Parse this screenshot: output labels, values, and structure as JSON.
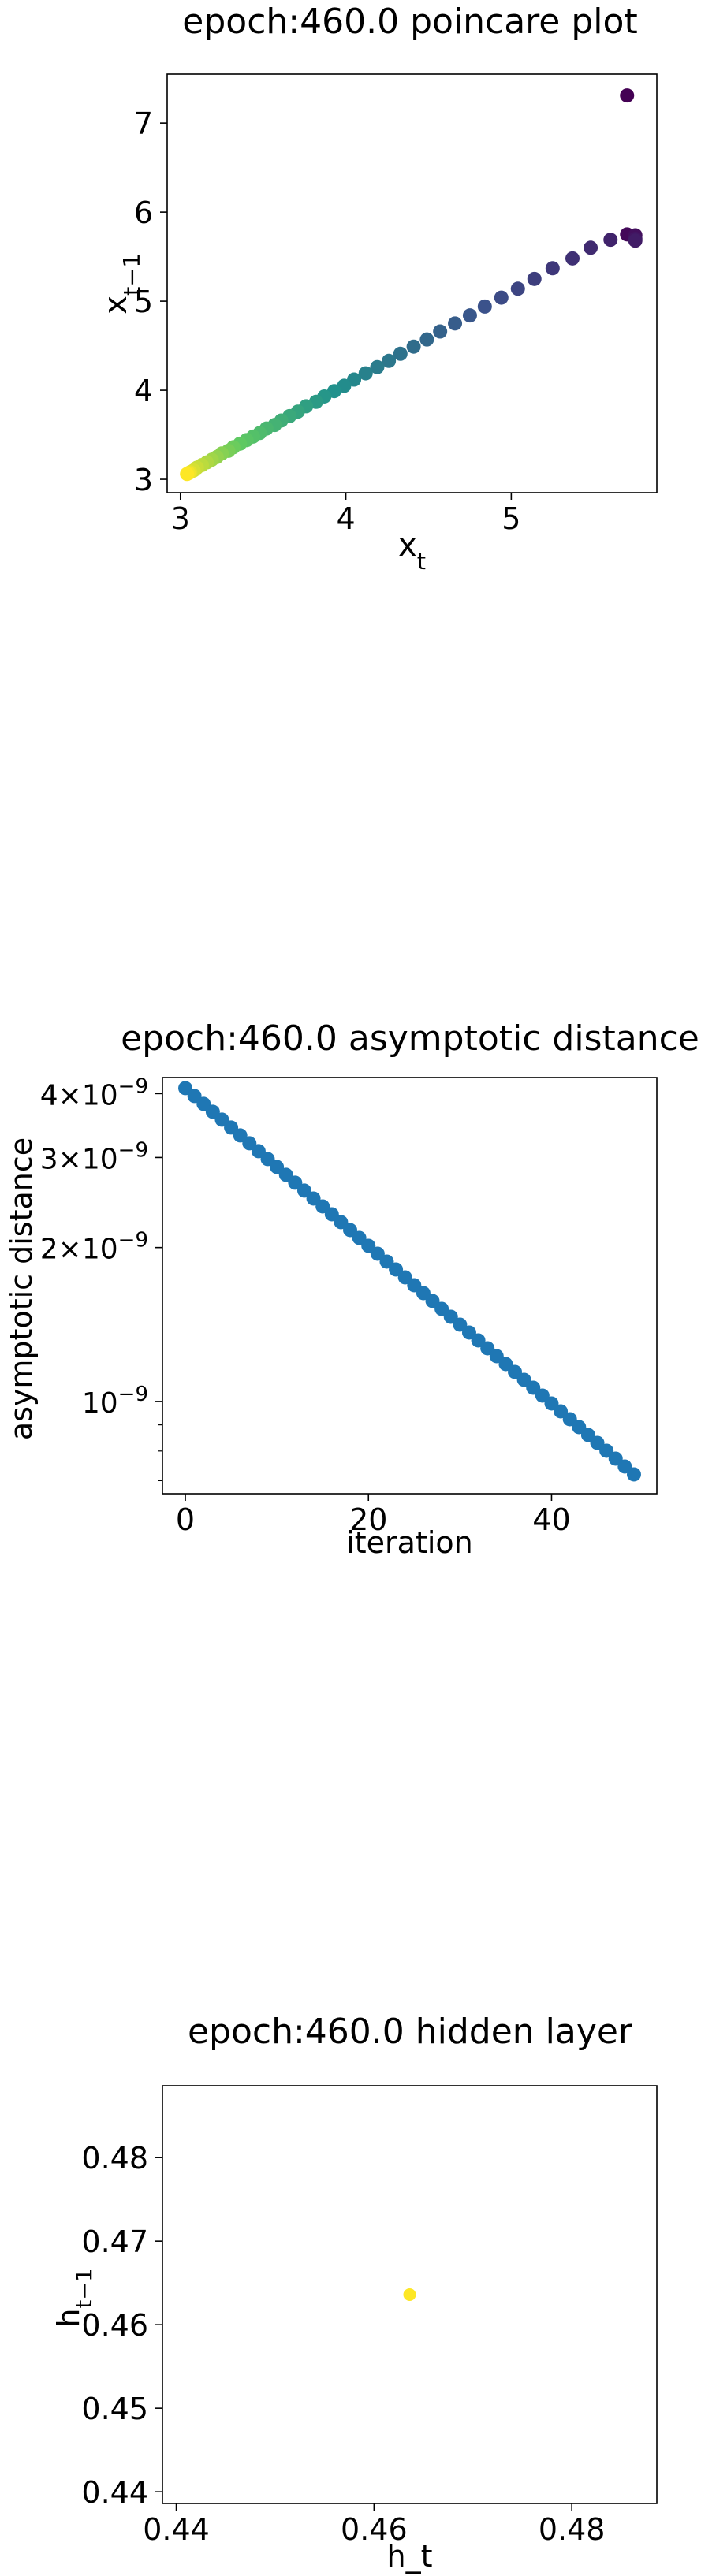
{
  "chart_data": [
    {
      "type": "scatter",
      "title": "epoch:460.0 poincare plot",
      "xlabel": "x_t",
      "ylabel": "x_{t-1}",
      "xlim": [
        2.92,
        5.88
      ],
      "ylim": [
        2.85,
        7.55
      ],
      "xticks": [
        3,
        4,
        5
      ],
      "yticks": [
        3,
        4,
        5,
        6,
        7
      ],
      "colormap": "viridis",
      "grid": false,
      "points": [
        {
          "x": 5.7,
          "y": 7.31
        },
        {
          "x": 5.7,
          "y": 5.75
        },
        {
          "x": 5.75,
          "y": 5.74
        },
        {
          "x": 5.75,
          "y": 5.7
        },
        {
          "x": 5.75,
          "y": 5.68
        },
        {
          "x": 5.6,
          "y": 5.69
        },
        {
          "x": 5.48,
          "y": 5.6
        },
        {
          "x": 5.37,
          "y": 5.48
        },
        {
          "x": 5.25,
          "y": 5.37
        },
        {
          "x": 5.14,
          "y": 5.25
        },
        {
          "x": 5.04,
          "y": 5.14
        },
        {
          "x": 4.94,
          "y": 5.04
        },
        {
          "x": 4.84,
          "y": 4.94
        },
        {
          "x": 4.75,
          "y": 4.84
        },
        {
          "x": 4.66,
          "y": 4.75
        },
        {
          "x": 4.57,
          "y": 4.66
        },
        {
          "x": 4.49,
          "y": 4.57
        },
        {
          "x": 4.41,
          "y": 4.49
        },
        {
          "x": 4.33,
          "y": 4.41
        },
        {
          "x": 4.26,
          "y": 4.33
        },
        {
          "x": 4.19,
          "y": 4.26
        },
        {
          "x": 4.12,
          "y": 4.19
        },
        {
          "x": 4.05,
          "y": 4.12
        },
        {
          "x": 3.99,
          "y": 4.05
        },
        {
          "x": 3.93,
          "y": 3.99
        },
        {
          "x": 3.87,
          "y": 3.93
        },
        {
          "x": 3.82,
          "y": 3.87
        },
        {
          "x": 3.76,
          "y": 3.82
        },
        {
          "x": 3.71,
          "y": 3.76
        },
        {
          "x": 3.66,
          "y": 3.71
        },
        {
          "x": 3.61,
          "y": 3.66
        },
        {
          "x": 3.57,
          "y": 3.61
        },
        {
          "x": 3.52,
          "y": 3.57
        },
        {
          "x": 3.48,
          "y": 3.52
        },
        {
          "x": 3.44,
          "y": 3.48
        },
        {
          "x": 3.4,
          "y": 3.44
        },
        {
          "x": 3.36,
          "y": 3.4
        },
        {
          "x": 3.32,
          "y": 3.36
        },
        {
          "x": 3.29,
          "y": 3.32
        },
        {
          "x": 3.25,
          "y": 3.29
        },
        {
          "x": 3.22,
          "y": 3.25
        },
        {
          "x": 3.19,
          "y": 3.22
        },
        {
          "x": 3.16,
          "y": 3.19
        },
        {
          "x": 3.13,
          "y": 3.16
        },
        {
          "x": 3.1,
          "y": 3.13
        },
        {
          "x": 3.08,
          "y": 3.1
        },
        {
          "x": 3.06,
          "y": 3.08
        },
        {
          "x": 3.05,
          "y": 3.07
        },
        {
          "x": 3.04,
          "y": 3.06
        }
      ]
    },
    {
      "type": "scatter",
      "title": "epoch:460.0 asymptotic distance",
      "xlabel": "iteration",
      "ylabel": "asymptotic distance",
      "yscale": "log",
      "xlim": [
        -2.5,
        51.5
      ],
      "ylim": [
        6.6e-10,
        4.3e-09
      ],
      "xticks": [
        0,
        20,
        40
      ],
      "yticks": [
        {
          "value": 4e-09,
          "mantissa": "4×10",
          "exponent": "−9"
        },
        {
          "value": 3e-09,
          "mantissa": "3×10",
          "exponent": "−9"
        },
        {
          "value": 2e-09,
          "mantissa": "2×10",
          "exponent": "−9"
        },
        {
          "value": 1e-09,
          "mantissa": "10",
          "exponent": "−9"
        }
      ],
      "yminor": [
        9e-10,
        8e-10,
        7e-10
      ],
      "color": "#1f77b4",
      "grid": false,
      "x": [
        0,
        1,
        2,
        3,
        4,
        5,
        6,
        7,
        8,
        9,
        10,
        11,
        12,
        13,
        14,
        15,
        16,
        17,
        18,
        19,
        20,
        21,
        22,
        23,
        24,
        25,
        26,
        27,
        28,
        29,
        30,
        31,
        32,
        33,
        34,
        35,
        36,
        37,
        38,
        39,
        40,
        41,
        42,
        43,
        44,
        45,
        46,
        47,
        48,
        49
      ],
      "y_first": 4.1e-09,
      "y_last": 7.2e-10
    },
    {
      "type": "scatter",
      "title": "epoch:460.0 hidden layer",
      "xlabel": "h_t",
      "ylabel": "h_{t-1}",
      "xlim": [
        0.4386,
        0.4886
      ],
      "ylim": [
        0.4386,
        0.4886
      ],
      "xticks": [
        0.44,
        0.46,
        0.48
      ],
      "yticks": [
        0.44,
        0.45,
        0.46,
        0.47,
        0.48
      ],
      "grid": false,
      "points": [
        {
          "x": 0.4636,
          "y": 0.4636,
          "color": "#fde725"
        }
      ]
    }
  ]
}
